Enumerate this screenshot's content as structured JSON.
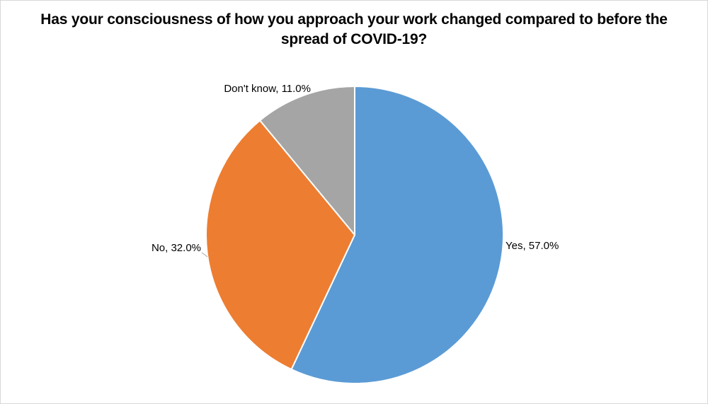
{
  "page": {
    "background": "#FFFFFF",
    "frame_border_color": "#D9D9D9"
  },
  "chart_data": {
    "type": "pie",
    "title": "Has your consciousness of how you approach your work changed compared to before the spread of COVID-19?",
    "title_lines": [
      "Has your consciousness of how you approach your work changed compared to before the",
      "spread of COVID-19?"
    ],
    "slices": [
      {
        "label": "Yes",
        "value": 57.0,
        "display": "Yes, 57.0%",
        "color": "#5B9BD5"
      },
      {
        "label": "No",
        "value": 32.0,
        "display": "No, 32.0%",
        "color": "#ED7D31"
      },
      {
        "label": "Don't know",
        "value": 11.0,
        "display": "Don't know, 11.0%",
        "color": "#A5A5A5"
      }
    ],
    "start_angle_deg": 0,
    "direction": "clockwise",
    "legend": "none",
    "label_format": "category, percent",
    "slice_border_color": "#FFFFFF",
    "label_color": "#000000",
    "leader_line_color": "#A6A6A6"
  }
}
